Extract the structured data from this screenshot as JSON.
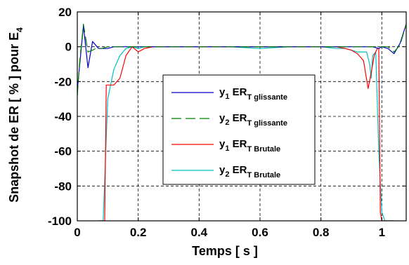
{
  "chart_data": {
    "type": "line",
    "title": "",
    "xlabel": "Temps [ s ]",
    "ylabel": "Snapshot de ER [ % ] pour E",
    "ylabel_subscript": "4",
    "xlim": [
      0,
      1.08
    ],
    "ylim": [
      -100,
      20
    ],
    "grid": true,
    "legend_position": "center-right",
    "xticks": [
      "0",
      "0.2",
      "0.4",
      "0.6",
      "0.8",
      "1"
    ],
    "yticks": [
      "20",
      "0",
      "-20",
      "-40",
      "-60",
      "-80",
      "-100"
    ],
    "series": [
      {
        "name": "y1 ERT glissante",
        "legend": {
          "var": "y",
          "var_sub": "1",
          "er": "ER",
          "er_sub": "T glissante"
        },
        "color": "#0000cc",
        "x": [
          0,
          0.008,
          0.02,
          0.035,
          0.05,
          0.06,
          0.07,
          0.08,
          0.1,
          0.12,
          0.14,
          0.2,
          0.4,
          0.6,
          0.8,
          0.9,
          0.97,
          0.99,
          1.0,
          1.02,
          1.04,
          1.06,
          1.08
        ],
        "y": [
          -25,
          -10,
          12,
          -12,
          3,
          1,
          -1,
          -1,
          -1,
          0,
          0,
          0,
          0,
          0,
          0,
          0,
          0,
          -1,
          0,
          -1,
          -4,
          2,
          13
        ]
      },
      {
        "name": "y2 ERT glissante",
        "legend": {
          "var": "y",
          "var_sub": "2",
          "er": "ER",
          "er_sub": "T glissante"
        },
        "color": "#008000",
        "dash": "14,6",
        "x": [
          0,
          0.008,
          0.02,
          0.035,
          0.05,
          0.06,
          0.07,
          0.08,
          0.1,
          0.12,
          0.14,
          0.2,
          0.4,
          0.6,
          0.8,
          0.9,
          0.97,
          0.99,
          1.0,
          1.02,
          1.04,
          1.06,
          1.08
        ],
        "y": [
          -28,
          -8,
          13,
          -3,
          -2,
          -1,
          -1,
          -1,
          0,
          0,
          0,
          0,
          0,
          0,
          0,
          0,
          0,
          0,
          0,
          0,
          -3,
          1,
          13
        ]
      },
      {
        "name": "y1 ERT Brutale",
        "legend": {
          "var": "y",
          "var_sub": "1",
          "er": "ER",
          "er_sub": "T Brutale"
        },
        "color": "#ff0000",
        "x": [
          0.07,
          0.08,
          0.09,
          0.095,
          0.12,
          0.14,
          0.16,
          0.18,
          0.2,
          0.22,
          0.25,
          0.3,
          0.4,
          0.5,
          0.6,
          0.7,
          0.8,
          0.85,
          0.88,
          0.9,
          0.92,
          0.94,
          0.955,
          0.965,
          0.975,
          0.985,
          0.99,
          0.995,
          1.0,
          1.005,
          1.01,
          1.02,
          1.04
        ],
        "y": [
          -100,
          -100,
          -100,
          -22,
          -22,
          -18,
          -5,
          0,
          -3,
          -1,
          0,
          0,
          0,
          0,
          0,
          0,
          0,
          0,
          -1,
          -2,
          -4,
          -8,
          -24,
          -15,
          -5,
          -1,
          -1,
          -95,
          -100,
          -100,
          -100,
          -100,
          -100
        ]
      },
      {
        "name": "y2 ERT Brutale",
        "legend": {
          "var": "y",
          "var_sub": "2",
          "er": "ER",
          "er_sub": "T Brutale"
        },
        "color": "#00c0c0",
        "x": [
          0.07,
          0.085,
          0.1,
          0.12,
          0.14,
          0.16,
          0.18,
          0.2,
          0.22,
          0.25,
          0.3,
          0.4,
          0.5,
          0.6,
          0.7,
          0.8,
          0.85,
          0.88,
          0.9,
          0.92,
          0.95,
          0.96,
          0.965,
          0.97,
          0.98,
          0.99,
          1.0,
          1.01,
          1.02,
          1.04
        ],
        "y": [
          -100,
          -100,
          -30,
          -13,
          -5,
          -1,
          0,
          -1,
          0,
          0,
          0,
          0,
          0,
          -1,
          0,
          0,
          -1,
          -1,
          -2,
          -3,
          -3,
          -10,
          -18,
          -5,
          -3,
          -60,
          -95,
          -100,
          -100,
          -100
        ]
      }
    ]
  }
}
